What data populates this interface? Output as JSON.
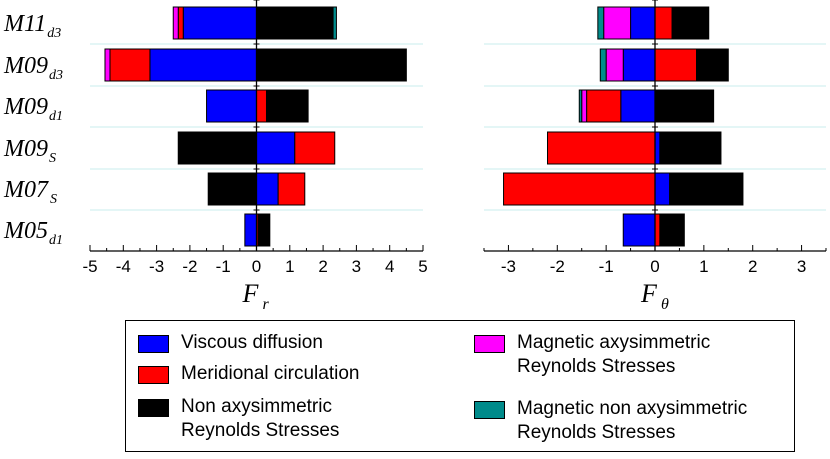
{
  "chart_data": [
    {
      "type": "bar",
      "orientation": "horizontal",
      "stacked": "diverging",
      "axis": "F_r",
      "xlabel": {
        "main": "F",
        "sub": "r"
      },
      "xlim": [
        -5,
        5
      ],
      "xticks": [
        -5,
        -4,
        -3,
        -2,
        -1,
        0,
        1,
        2,
        3,
        4,
        5
      ],
      "categories": [
        {
          "main": "M11",
          "sub": "d3"
        },
        {
          "main": "M09",
          "sub": "d3"
        },
        {
          "main": "M09",
          "sub": "d1"
        },
        {
          "main": "M09",
          "sub": "S"
        },
        {
          "main": "M07",
          "sub": "S"
        },
        {
          "main": "M05",
          "sub": "d1"
        }
      ],
      "series": [
        {
          "name": "Viscous diffusion",
          "key": "viscous",
          "values": [
            -2.2,
            -3.2,
            -1.5,
            1.15,
            0.65,
            -0.35
          ]
        },
        {
          "name": "Meridional circulation",
          "key": "meridional",
          "values": [
            -0.15,
            -1.2,
            0.3,
            1.2,
            0.8,
            0.05
          ]
        },
        {
          "name": "Non axysimmetric Reynolds Stresses",
          "key": "nonaxi",
          "values": [
            2.3,
            4.5,
            1.25,
            -2.35,
            -1.45,
            0.35
          ]
        },
        {
          "name": "Magnetic axysimmetric Reynolds Stresses",
          "key": "magaxi",
          "values": [
            -0.15,
            -0.15,
            0,
            0,
            0,
            0
          ]
        },
        {
          "name": "Magnetic non axysimmetric Reynolds Stresses",
          "key": "magnonaxi",
          "values": [
            0.1,
            0,
            0,
            0,
            0,
            0
          ]
        }
      ]
    },
    {
      "type": "bar",
      "orientation": "horizontal",
      "stacked": "diverging",
      "axis": "F_theta",
      "xlabel": {
        "main": "F",
        "sub": "θ"
      },
      "xlim": [
        -3.5,
        3.5
      ],
      "xticks": [
        -3,
        -2,
        -1,
        0,
        1,
        2,
        3
      ],
      "categories": [
        {
          "main": "M11",
          "sub": "d3"
        },
        {
          "main": "M09",
          "sub": "d3"
        },
        {
          "main": "M09",
          "sub": "d1"
        },
        {
          "main": "M09",
          "sub": "S"
        },
        {
          "main": "M07",
          "sub": "S"
        },
        {
          "main": "M05",
          "sub": "d1"
        }
      ],
      "series": [
        {
          "name": "Viscous diffusion",
          "key": "viscous",
          "values": [
            -0.5,
            -0.65,
            -0.7,
            0.1,
            0.3,
            -0.65
          ]
        },
        {
          "name": "Meridional circulation",
          "key": "meridional",
          "values": [
            0.35,
            0.85,
            -0.7,
            -2.2,
            -3.1,
            0.1
          ]
        },
        {
          "name": "Non axysimmetric Reynolds Stresses",
          "key": "nonaxi",
          "values": [
            0.75,
            0.65,
            1.2,
            1.25,
            1.5,
            0.5
          ]
        },
        {
          "name": "Magnetic axysimmetric Reynolds Stresses",
          "key": "magaxi",
          "values": [
            -0.55,
            -0.35,
            -0.1,
            0,
            0,
            0
          ]
        },
        {
          "name": "Magnetic non axysimmetric Reynolds Stresses",
          "key": "magnonaxi",
          "values": [
            -0.12,
            -0.12,
            -0.05,
            0,
            0,
            0
          ]
        }
      ]
    }
  ],
  "colors": {
    "viscous": "#0000ff",
    "meridional": "#ff0000",
    "nonaxi": "#000000",
    "magaxi": "#ff00ff",
    "magnonaxi": "#008b8b",
    "gridline": "#c8ecec"
  },
  "legend": [
    {
      "key": "viscous",
      "label": "Viscous diffusion"
    },
    {
      "key": "meridional",
      "label": "Meridional circulation"
    },
    {
      "key": "nonaxi",
      "label": "Non axysimmetric\nReynolds Stresses"
    },
    {
      "key": "magaxi",
      "label": "Magnetic axysimmetric\nReynolds Stresses"
    },
    {
      "key": "magnonaxi",
      "label": "Magnetic non axysimmetric\nReynolds Stresses"
    }
  ]
}
